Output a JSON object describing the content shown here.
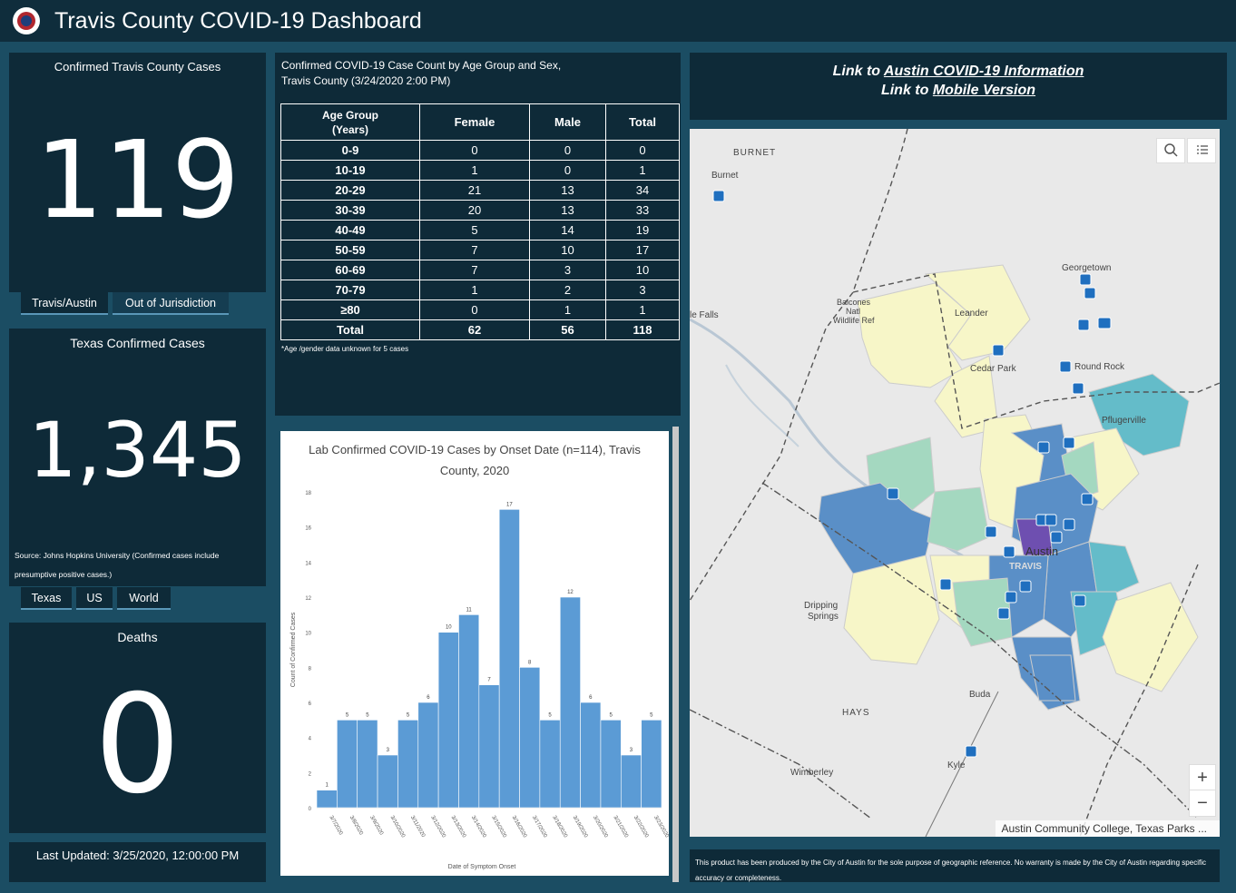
{
  "header": {
    "title": "Travis County COVID-19 Dashboard"
  },
  "confirmed": {
    "title": "Confirmed Travis County Cases",
    "value": "119",
    "tabs": [
      {
        "label": "Travis/Austin"
      },
      {
        "label": "Out of Jurisdiction"
      }
    ]
  },
  "texas": {
    "title": "Texas Confirmed Cases",
    "value": "1,345",
    "source": "Source: Johns Hopkins University (Confirmed cases include presumptive positive cases.)",
    "tabs": [
      {
        "label": "Texas"
      },
      {
        "label": "US"
      },
      {
        "label": "World"
      }
    ]
  },
  "deaths": {
    "title": "Deaths",
    "value": "0"
  },
  "last_updated": "Last Updated: 3/25/2020, 12:00:00 PM",
  "age_table": {
    "title_line1": "Confirmed COVID-19 Case Count by Age Group and Sex,",
    "title_line2": "Travis County (3/24/2020 2:00 PM)",
    "headers": {
      "group1": "Age Group",
      "group2": "(Years)",
      "female": "Female",
      "male": "Male",
      "total": "Total"
    },
    "rows": [
      {
        "group": "0-9",
        "female": "0",
        "male": "0",
        "total": "0"
      },
      {
        "group": "10-19",
        "female": "1",
        "male": "0",
        "total": "1"
      },
      {
        "group": "20-29",
        "female": "21",
        "male": "13",
        "total": "34"
      },
      {
        "group": "30-39",
        "female": "20",
        "male": "13",
        "total": "33"
      },
      {
        "group": "40-49",
        "female": "5",
        "male": "14",
        "total": "19"
      },
      {
        "group": "50-59",
        "female": "7",
        "male": "10",
        "total": "17"
      },
      {
        "group": "60-69",
        "female": "7",
        "male": "3",
        "total": "10"
      },
      {
        "group": "70-79",
        "female": "1",
        "male": "2",
        "total": "3"
      },
      {
        "group": "≥80",
        "female": "0",
        "male": "1",
        "total": "1"
      },
      {
        "group": "Total",
        "female": "62",
        "male": "56",
        "total": "118"
      }
    ],
    "note": "*Age /gender data unknown for 5 cases"
  },
  "chart_data": {
    "type": "bar",
    "title_line1": "Lab Confirmed COVID-19 Cases by Onset Date (n=114), Travis",
    "title_line2": "County, 2020",
    "xlabel": "Date of Symptom Onset",
    "ylabel": "Count of Confirmed Cases",
    "ylim": [
      0,
      18
    ],
    "yticks": [
      "0",
      "2",
      "4",
      "6",
      "8",
      "10",
      "12",
      "14",
      "16",
      "18"
    ],
    "categories": [
      "3/7/2020",
      "3/8/2020",
      "3/9/2020",
      "3/10/2020",
      "3/11/2020",
      "3/12/2020",
      "3/13/2020",
      "3/14/2020",
      "3/15/2020",
      "3/16/2020",
      "3/17/2020",
      "3/18/2020",
      "3/19/2020",
      "3/20/2020",
      "3/21/2020",
      "3/22/2020",
      "3/23/2020"
    ],
    "values": [
      1,
      5,
      5,
      3,
      5,
      6,
      10,
      11,
      7,
      17,
      8,
      5,
      12,
      6,
      5,
      3,
      5
    ],
    "color": "#5b9bd5"
  },
  "links": {
    "line1_prefix": "Link to ",
    "line1_link": "Austin COVID-19 Information",
    "line2_prefix": "Link to ",
    "line2_link": "Mobile Version"
  },
  "map": {
    "labels": [
      "BURNET",
      "Burnet",
      "Georgetown",
      "Balcones",
      "Natl",
      "Wildlife Ref",
      "le Falls",
      "Leander",
      "Cedar Park",
      "Round Rock",
      "Pflugerville",
      "Austin",
      "TRAVIS",
      "Dripping",
      "Springs",
      "HAYS",
      "Buda",
      "Kyle",
      "Wimberley"
    ],
    "attribution": "Austin Community College, Texas Parks ...",
    "zoom_in": "+",
    "zoom_out": "−"
  },
  "disclaimer": "This product has been produced by the City of Austin for the sole purpose of geographic reference. No warranty is made by the City of Austin regarding specific accuracy or completeness."
}
